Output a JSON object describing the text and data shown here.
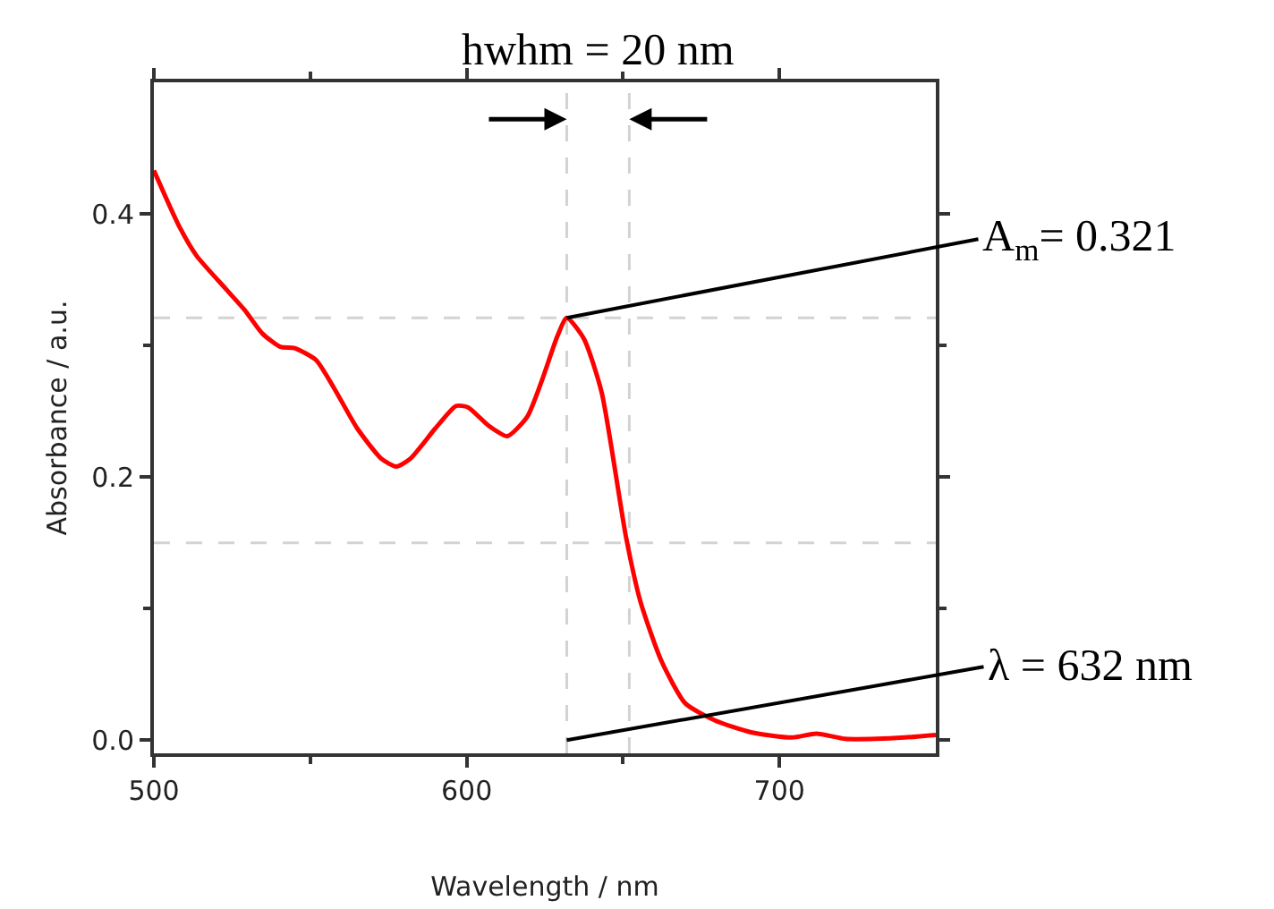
{
  "chart_data": {
    "type": "line",
    "xlabel": "Wavelength / nm",
    "ylabel": "Absorbance / a.u.",
    "x": [
      500,
      508,
      513.7,
      523,
      529,
      534.7,
      540.4,
      545,
      551.8,
      557.5,
      565,
      572.7,
      577.5,
      582,
      590,
      596.6,
      600.4,
      607,
      613,
      619.4,
      624,
      629,
      632,
      637.5,
      643.2,
      650.9,
      655.6,
      662.3,
      669.9,
      679.4,
      690.9,
      704,
      711.8,
      721,
      731,
      740,
      750
    ],
    "series": [
      {
        "color": "#ff0000",
        "values": [
          0.433,
          0.391,
          0.368,
          0.343,
          0.327,
          0.309,
          0.299,
          0.298,
          0.289,
          0.268,
          0.237,
          0.214,
          0.208,
          0.214,
          0.237,
          0.254,
          0.253,
          0.239,
          0.231,
          0.246,
          0.273,
          0.307,
          0.321,
          0.305,
          0.264,
          0.155,
          0.105,
          0.06,
          0.028,
          0.015,
          0.006,
          0.002,
          0.005,
          0.001,
          0.001,
          0.002,
          0.004
        ]
      }
    ],
    "xlim": [
      500,
      750
    ],
    "xticks": [
      500,
      600,
      700
    ],
    "ylim": [
      -0.01,
      0.5
    ],
    "yticks": [
      {
        "value": 0,
        "label": "0.0"
      },
      0.2,
      0.4
    ],
    "ref_lines": [
      {
        "axis": "x",
        "value": 632,
        "color": "#d3d3d3",
        "line_style": "dashed"
      },
      {
        "axis": "x",
        "value": 652,
        "color": "#d3d3d3",
        "line_style": "dashed"
      },
      {
        "axis": "y",
        "value": 0.321,
        "color": "#d3d3d3",
        "line_style": "dashed"
      },
      {
        "axis": "y",
        "value": 0.15,
        "color": "#d3d3d3",
        "line_style": "dashed"
      }
    ],
    "annotations": [
      "hwhm = 20 nm",
      {
        "text": "A$_{m}$= 0.321",
        "x": 632,
        "y": 0.321
      },
      {
        "text": "λ = 632 nm",
        "x": 632,
        "y": 0
      }
    ],
    "grid": false,
    "marker": "none",
    "line_style": "solid"
  }
}
